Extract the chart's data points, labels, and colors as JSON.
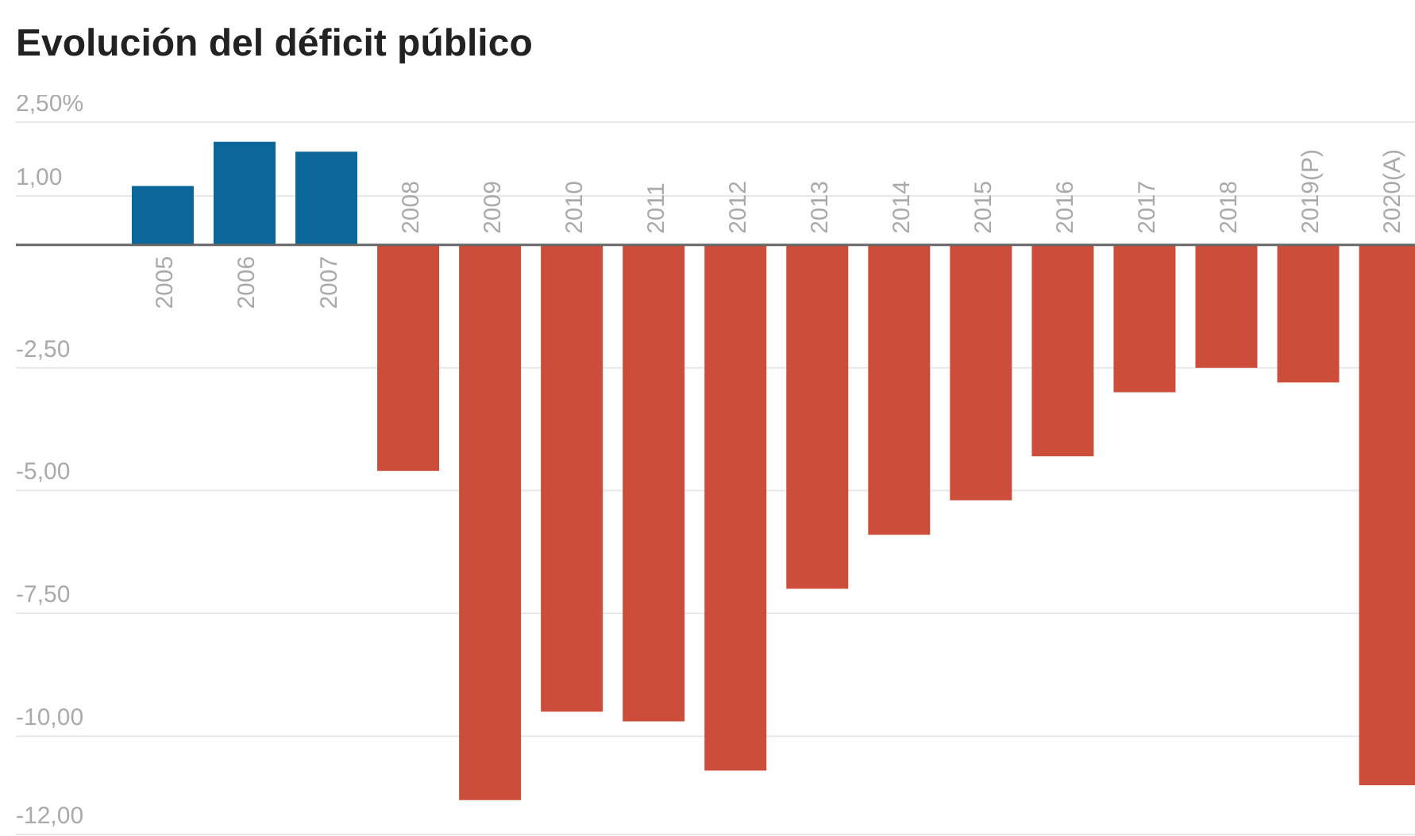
{
  "chart_data": {
    "type": "bar",
    "title": "Evolución del déficit público",
    "categories": [
      "2005",
      "2006",
      "2007",
      "2008",
      "2009",
      "2010",
      "2011",
      "2012",
      "2013",
      "2014",
      "2015",
      "2016",
      "2017",
      "2018",
      "2019(P)",
      "2020(A)"
    ],
    "values": [
      1.2,
      2.1,
      1.9,
      -4.6,
      -11.3,
      -9.5,
      -9.7,
      -10.7,
      -7.0,
      -5.9,
      -5.2,
      -4.3,
      -3.0,
      -2.5,
      -2.8,
      -11.0
    ],
    "colors": [
      "#0b6699",
      "#0b6699",
      "#0b6699",
      "#cc4d3a",
      "#cc4d3a",
      "#cc4d3a",
      "#cc4d3a",
      "#cc4d3a",
      "#cc4d3a",
      "#cc4d3a",
      "#cc4d3a",
      "#cc4d3a",
      "#cc4d3a",
      "#cc4d3a",
      "#cc4d3a",
      "#cc4d3a"
    ],
    "ylim": [
      -12,
      2.5
    ],
    "yticks": [
      {
        "value": 2.5,
        "label": "2,50%"
      },
      {
        "value": 1,
        "label": "1,00"
      },
      {
        "value": -2.5,
        "label": "-2,50"
      },
      {
        "value": -5,
        "label": "-5,00"
      },
      {
        "value": -7.5,
        "label": "-7,50"
      },
      {
        "value": -10,
        "label": "-10,00"
      },
      {
        "value": -12,
        "label": "-12,00"
      }
    ],
    "grid": "y",
    "legend": false
  }
}
